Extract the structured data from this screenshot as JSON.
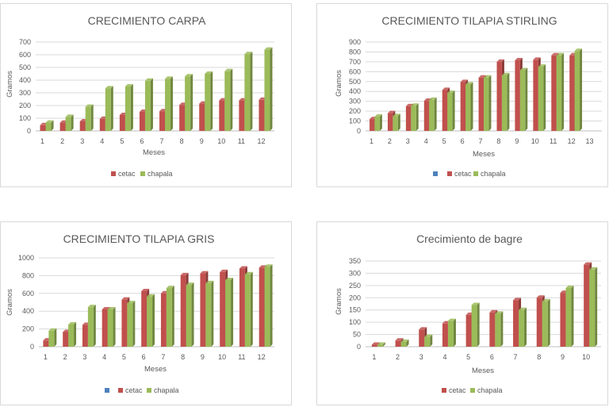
{
  "colors": {
    "cetac": "#c0504d",
    "chapala": "#9bbb59",
    "blank": "#4f81bd"
  },
  "chart_data": [
    {
      "type": "bar",
      "title": "CRECIMIENTO  CARPA",
      "xlabel": "Meses",
      "ylabel": "Gramos",
      "ylim": [
        0,
        700
      ],
      "yticks": [
        "0",
        "100",
        "200",
        "300",
        "400",
        "500",
        "600",
        "700"
      ],
      "categories": [
        "1",
        "2",
        "3",
        "4",
        "5",
        "6",
        "7",
        "8",
        "9",
        "10",
        "11",
        "12"
      ],
      "series": [
        {
          "name": "cetac",
          "values": [
            45,
            65,
            75,
            95,
            125,
            150,
            155,
            205,
            215,
            240,
            240,
            245
          ]
        },
        {
          "name": "chapala",
          "values": [
            65,
            110,
            190,
            335,
            350,
            395,
            410,
            430,
            450,
            470,
            605,
            640
          ]
        }
      ],
      "legend_items": [
        {
          "name": "cetac",
          "key": "cetac"
        },
        {
          "name": "chapala",
          "key": "chapala"
        }
      ],
      "legend": "bottom",
      "grid": true
    },
    {
      "type": "bar",
      "title": "CRECIMIENTO  TILAPIA STIRLING",
      "xlabel": "Meses",
      "ylabel": "Gramos",
      "ylim": [
        0,
        900
      ],
      "yticks": [
        "0",
        "100",
        "200",
        "300",
        "400",
        "500",
        "600",
        "700",
        "800",
        "900"
      ],
      "categories": [
        "1",
        "2",
        "3",
        "4",
        "5",
        "6",
        "7",
        "8",
        "9",
        "10",
        "11",
        "12",
        "13"
      ],
      "series": [
        {
          "name": "cetac",
          "values": [
            120,
            180,
            250,
            305,
            415,
            495,
            540,
            700,
            715,
            720,
            765,
            765,
            0
          ]
        },
        {
          "name": "chapala",
          "values": [
            145,
            150,
            255,
            315,
            385,
            470,
            540,
            565,
            615,
            650,
            765,
            810,
            0
          ]
        }
      ],
      "legend_items": [
        {
          "name": "",
          "key": "blank"
        },
        {
          "name": "cetac",
          "key": "cetac"
        },
        {
          "name": "chapala",
          "key": "chapala"
        }
      ],
      "legend": "bottom",
      "grid": true
    },
    {
      "type": "bar",
      "title": "CRECIMIENTO  TILAPIA GRIS",
      "xlabel": "Meses",
      "ylabel": "Gramos",
      "ylim": [
        0,
        1000
      ],
      "yticks": [
        "0",
        "200",
        "400",
        "600",
        "800",
        "1000"
      ],
      "categories": [
        "1",
        "2",
        "3",
        "4",
        "5",
        "6",
        "7",
        "8",
        "9",
        "10",
        "11",
        "12"
      ],
      "series": [
        {
          "name": "cetac",
          "values": [
            70,
            165,
            245,
            420,
            530,
            625,
            600,
            805,
            825,
            840,
            880,
            890
          ]
        },
        {
          "name": "chapala",
          "values": [
            180,
            250,
            445,
            420,
            490,
            565,
            660,
            695,
            715,
            750,
            815,
            900
          ]
        }
      ],
      "legend_items": [
        {
          "name": "",
          "key": "blank"
        },
        {
          "name": "cetac",
          "key": "cetac"
        },
        {
          "name": "chapala",
          "key": "chapala"
        }
      ],
      "legend": "bottom",
      "grid": true
    },
    {
      "type": "bar",
      "title": "Crecimiento de bagre",
      "xlabel": "Meses",
      "ylabel": "Gramos",
      "ylim": [
        0,
        350
      ],
      "yticks": [
        "0",
        "50",
        "100",
        "150",
        "200",
        "250",
        "300",
        "350"
      ],
      "categories": [
        "1",
        "2",
        "3",
        "4",
        "5",
        "6",
        "7",
        "8",
        "9",
        "10"
      ],
      "series": [
        {
          "name": "cetac",
          "values": [
            8,
            25,
            70,
            95,
            130,
            140,
            190,
            200,
            220,
            335
          ]
        },
        {
          "name": "chapala",
          "values": [
            8,
            20,
            40,
            105,
            170,
            135,
            150,
            185,
            240,
            315
          ]
        }
      ],
      "legend_items": [
        {
          "name": "cetac",
          "key": "cetac"
        },
        {
          "name": "chapala",
          "key": "chapala"
        }
      ],
      "legend": "bottom",
      "grid": true
    }
  ]
}
